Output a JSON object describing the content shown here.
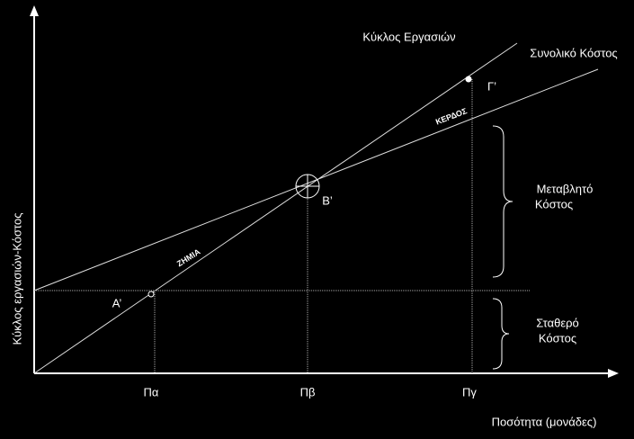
{
  "lines": {
    "revenue": "Κύκλος Εργασιών",
    "total_cost": "Συνολικό Κόστος"
  },
  "points": {
    "a": "Α’",
    "b": "Β’",
    "c": "Γ’"
  },
  "regions": {
    "profit": "ΚΕΡΔΟΣ",
    "loss": "ΖΗΜΙΑ"
  },
  "braces": {
    "variable_cost": [
      "Μεταβλητό",
      "Κόστος"
    ],
    "fixed_cost": [
      "Σταθερό",
      "Κόστος"
    ]
  },
  "x_axis": {
    "label": "Ποσότητα (μονάδες)",
    "ticks": [
      "Πα",
      "Πβ",
      "Πγ"
    ]
  },
  "y_axis": {
    "label": "Κύκλος εργασιών-Κόστος"
  }
}
